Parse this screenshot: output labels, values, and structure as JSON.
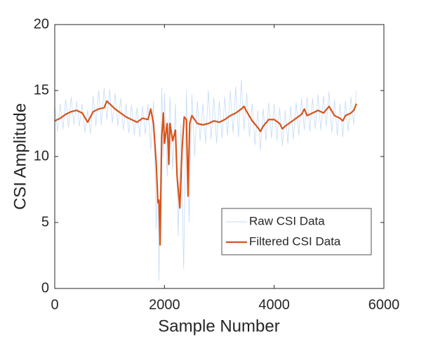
{
  "chart_data": {
    "type": "line",
    "xlabel": "Sample Number",
    "ylabel": "CSI Amplitude",
    "xlim": [
      0,
      6000
    ],
    "xticks": [
      0,
      2000,
      4000,
      6000
    ],
    "ylim": [
      0,
      20
    ],
    "yticks": [
      0,
      5,
      10,
      15,
      20
    ],
    "grid": false,
    "legend": "southeast",
    "series": [
      {
        "name": "Raw CSI Data",
        "color": "#c4dbf6",
        "x": [
          0,
          50,
          100,
          150,
          200,
          250,
          300,
          350,
          400,
          450,
          500,
          550,
          600,
          650,
          700,
          750,
          800,
          850,
          900,
          950,
          1000,
          1050,
          1100,
          1150,
          1200,
          1250,
          1300,
          1350,
          1400,
          1450,
          1500,
          1550,
          1600,
          1650,
          1700,
          1750,
          1800,
          1850,
          1880,
          1900,
          1930,
          1950,
          1980,
          2000,
          2050,
          2100,
          2150,
          2200,
          2250,
          2300,
          2350,
          2400,
          2450,
          2500,
          2550,
          2600,
          2650,
          2700,
          2750,
          2800,
          2850,
          2900,
          2950,
          3000,
          3050,
          3100,
          3150,
          3200,
          3250,
          3300,
          3350,
          3400,
          3450,
          3500,
          3550,
          3600,
          3650,
          3700,
          3750,
          3800,
          3850,
          3900,
          3950,
          4000,
          4050,
          4100,
          4150,
          4200,
          4250,
          4300,
          4350,
          4400,
          4450,
          4500,
          4550,
          4600,
          4650,
          4700,
          4750,
          4800,
          4850,
          4900,
          4950,
          5000,
          5050,
          5100,
          5150,
          5200,
          5250,
          5300,
          5350,
          5400,
          5450,
          5500
        ],
        "values": [
          13.8,
          11.9,
          14.0,
          12.1,
          14.3,
          12.2,
          14.5,
          12.4,
          14.2,
          12.3,
          14.0,
          11.8,
          13.5,
          11.7,
          14.6,
          12.3,
          15.0,
          12.4,
          15.2,
          12.8,
          15.1,
          12.5,
          14.8,
          12.3,
          14.4,
          12.0,
          14.0,
          11.8,
          13.9,
          11.6,
          13.7,
          11.5,
          13.8,
          11.7,
          14.0,
          10.5,
          14.2,
          4.5,
          8.0,
          0.6,
          9.5,
          15.2,
          10.0,
          14.8,
          8.5,
          14.5,
          9.0,
          14.0,
          4.0,
          12.5,
          1.5,
          15.0,
          5.0,
          14.7,
          10.0,
          14.2,
          11.2,
          14.0,
          11.0,
          15.0,
          11.3,
          14.5,
          11.0,
          14.2,
          11.4,
          14.5,
          11.6,
          15.0,
          11.8,
          15.3,
          11.5,
          15.8,
          12.0,
          14.8,
          11.5,
          14.0,
          10.9,
          13.5,
          10.5,
          13.6,
          11.2,
          14.1,
          11.4,
          14.0,
          11.2,
          13.7,
          10.8,
          13.5,
          11.0,
          13.8,
          11.3,
          14.1,
          11.6,
          14.4,
          12.0,
          14.5,
          11.9,
          14.4,
          12.1,
          14.7,
          12.0,
          14.6,
          12.3,
          14.9,
          11.8,
          14.3,
          11.6,
          14.0,
          11.5,
          14.2,
          11.9,
          14.5,
          12.4,
          15.0
        ]
      },
      {
        "name": "Filtered CSI Data",
        "color": "#d95319",
        "x": [
          0,
          100,
          200,
          300,
          400,
          500,
          600,
          700,
          800,
          900,
          950,
          1000,
          1100,
          1200,
          1300,
          1400,
          1500,
          1600,
          1700,
          1750,
          1800,
          1850,
          1880,
          1900,
          1920,
          1950,
          1980,
          2000,
          2050,
          2080,
          2100,
          2150,
          2200,
          2230,
          2280,
          2320,
          2360,
          2400,
          2430,
          2460,
          2500,
          2600,
          2700,
          2800,
          2900,
          3000,
          3100,
          3200,
          3300,
          3400,
          3450,
          3500,
          3600,
          3700,
          3750,
          3800,
          3900,
          4000,
          4100,
          4150,
          4200,
          4300,
          4400,
          4500,
          4550,
          4600,
          4700,
          4800,
          4900,
          5000,
          5100,
          5200,
          5250,
          5300,
          5400,
          5450,
          5500
        ],
        "values": [
          12.7,
          12.9,
          13.2,
          13.4,
          13.5,
          13.3,
          12.6,
          13.4,
          13.6,
          13.7,
          14.2,
          14.0,
          13.6,
          13.3,
          13.0,
          12.8,
          12.6,
          12.9,
          12.8,
          13.6,
          12.5,
          9.5,
          6.5,
          6.7,
          3.3,
          11.5,
          13.3,
          11.0,
          12.5,
          9.4,
          12.5,
          11.2,
          12.0,
          8.5,
          6.1,
          10.5,
          13.0,
          12.8,
          7.0,
          12.5,
          13.1,
          12.5,
          12.4,
          12.5,
          12.7,
          12.6,
          12.8,
          13.1,
          13.3,
          13.6,
          13.8,
          13.4,
          12.7,
          12.2,
          11.9,
          12.3,
          12.8,
          12.8,
          12.5,
          12.1,
          12.3,
          12.6,
          12.9,
          13.2,
          13.6,
          13.1,
          13.3,
          13.5,
          13.3,
          13.8,
          13.1,
          12.9,
          12.7,
          13.1,
          13.3,
          13.5,
          14.0
        ]
      }
    ]
  }
}
